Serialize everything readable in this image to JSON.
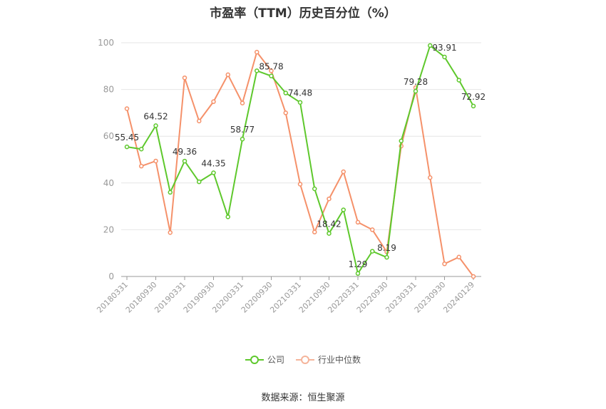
{
  "chart_data": {
    "type": "line",
    "title": "市盈率（TTM）历史百分位（%）",
    "ylim": [
      0,
      100
    ],
    "yticks": [
      0,
      20,
      40,
      60,
      80,
      100
    ],
    "x_tick_labels": [
      "20180331",
      "20180930",
      "20190331",
      "20190930",
      "20200331",
      "20200930",
      "20210331",
      "20210930",
      "20220331",
      "20220930",
      "20230331",
      "20230930",
      "20240129"
    ],
    "x_tick_positions": [
      0,
      2,
      4,
      6,
      8,
      10,
      12,
      14,
      16,
      18,
      20,
      22,
      24
    ],
    "series": [
      {
        "name": "公司",
        "color": "#5ec82c",
        "values": [
          55.45,
          54.5,
          64.52,
          36.0,
          49.36,
          40.5,
          44.35,
          25.5,
          58.77,
          88.0,
          85.78,
          78.5,
          74.48,
          37.5,
          18.42,
          28.5,
          1.29,
          10.8,
          8.19,
          58.0,
          79.28,
          98.8,
          93.91,
          84.0,
          72.92
        ],
        "labels": {
          "0": "55.45",
          "2": "64.52",
          "4": "49.36",
          "6": "44.35",
          "8": "58.77",
          "10": "85.78",
          "12": "74.48",
          "14": "18.42",
          "16": "1.29",
          "18": "8.19",
          "20": "79.28",
          "22": "93.91",
          "24": "72.92"
        }
      },
      {
        "name": "行业中位数",
        "color": "#f5916a",
        "values": [
          71.8,
          47.2,
          49.4,
          18.8,
          85.0,
          66.5,
          74.8,
          86.3,
          74.2,
          96.0,
          88.0,
          70.0,
          39.5,
          19.0,
          33.2,
          44.8,
          23.2,
          20.0,
          10.5,
          55.8,
          80.8,
          42.3,
          5.4,
          8.3,
          0.0
        ]
      }
    ],
    "source": "数据来源：恒生聚源"
  }
}
